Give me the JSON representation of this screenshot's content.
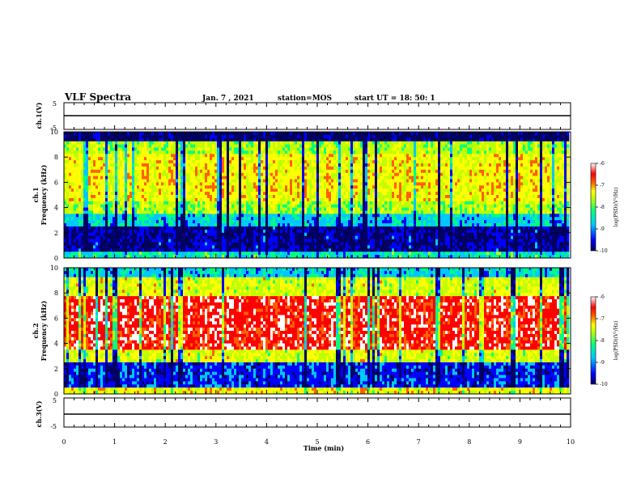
{
  "header": {
    "title": "VLF Spectra",
    "date": "Jan. 7 , 2021",
    "station": "station=MOS",
    "start": "start UT =  18: 50: 1"
  },
  "chart_data": [
    {
      "type": "line",
      "panel": "ch1-voltage",
      "ylabel": "ch.1(V)",
      "ylim": [
        -5,
        5
      ],
      "ytick_labels": [
        "5",
        "-5"
      ],
      "values_const": 0
    },
    {
      "type": "heatmap",
      "panel": "ch1-spectrogram",
      "ylabel_top": "ch.1",
      "ylabel": "Frequency (kHz)",
      "ylim": [
        0,
        10
      ],
      "ytick_labels": [
        "0",
        "2",
        "4",
        "6",
        "8",
        "10"
      ],
      "colorbar": {
        "label": "log(PSD)(V²/Hz)",
        "range": [
          -10,
          -6
        ],
        "tick_labels": [
          "-6",
          "-7",
          "-8",
          "-9",
          "-10"
        ]
      }
    },
    {
      "type": "heatmap",
      "panel": "ch2-spectrogram",
      "ylabel_top": "ch.2",
      "ylabel": "Frequency (kHz)",
      "ylim": [
        0,
        10
      ],
      "ytick_labels": [
        "0",
        "2",
        "4",
        "6",
        "8",
        "10"
      ],
      "colorbar": {
        "label": "log(PSD)(V²/Hz)",
        "range": [
          -10,
          -6
        ],
        "tick_labels": [
          "-6",
          "-7",
          "-8",
          "-9",
          "-10"
        ]
      }
    },
    {
      "type": "line",
      "panel": "ch3-voltage",
      "ylabel": "ch.3(V)",
      "ylim": [
        -5,
        5
      ],
      "ytick_labels": [
        "5",
        "-5"
      ],
      "values_const": 0
    }
  ],
  "xaxis": {
    "label": "Time (min)",
    "xlim": [
      0,
      10
    ],
    "tick_labels": [
      "0",
      "1",
      "2",
      "3",
      "4",
      "5",
      "6",
      "7",
      "8",
      "9",
      "10"
    ]
  },
  "colors": {
    "colormap": [
      "#000060",
      "#0000ff",
      "#00c8ff",
      "#00ff80",
      "#c0ff00",
      "#ffff00",
      "#ff6000",
      "#ff0000",
      "#ffffff"
    ]
  }
}
